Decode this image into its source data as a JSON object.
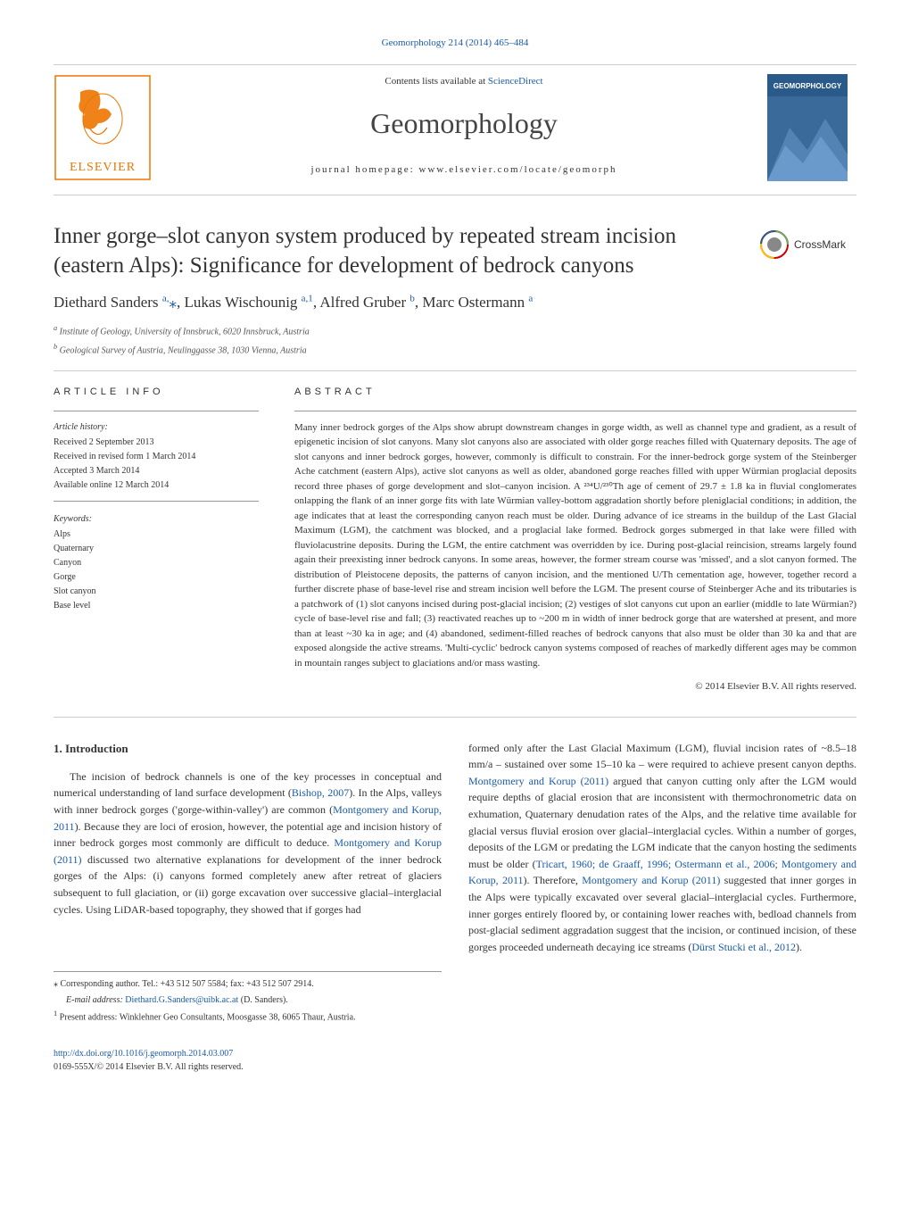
{
  "citation": "Geomorphology 214 (2014) 465–484",
  "contents_prefix": "Contents lists available at ",
  "contents_link": "ScienceDirect",
  "journal_name": "Geomorphology",
  "homepage_prefix": "journal homepage: ",
  "homepage_url": "www.elsevier.com/locate/geomorph",
  "publisher_logo_text": "ELSEVIER",
  "cover_banner_text": "GEOMORPHOLOGY",
  "crossmark_text": "CrossMark",
  "title": "Inner gorge–slot canyon system produced by repeated stream incision (eastern Alps): Significance for development of bedrock canyons",
  "authors_html": "Diethard Sanders <sup>a,</sup><span class='star'>⁎</span>, Lukas Wischounig <sup>a,1</sup>, Alfred Gruber <sup>b</sup>, Marc Ostermann <sup>a</sup>",
  "affiliations": {
    "a": "Institute of Geology, University of Innsbruck, 6020 Innsbruck, Austria",
    "b": "Geological Survey of Austria, Neulinggasse 38, 1030 Vienna, Austria"
  },
  "section_info": "article info",
  "section_abstract": "abstract",
  "history_label": "Article history:",
  "history": [
    "Received 2 September 2013",
    "Received in revised form 1 March 2014",
    "Accepted 3 March 2014",
    "Available online 12 March 2014"
  ],
  "keywords_label": "Keywords:",
  "keywords": [
    "Alps",
    "Quaternary",
    "Canyon",
    "Gorge",
    "Slot canyon",
    "Base level"
  ],
  "abstract": "Many inner bedrock gorges of the Alps show abrupt downstream changes in gorge width, as well as channel type and gradient, as a result of epigenetic incision of slot canyons. Many slot canyons also are associated with older gorge reaches filled with Quaternary deposits. The age of slot canyons and inner bedrock gorges, however, commonly is difficult to constrain. For the inner-bedrock gorge system of the Steinberger Ache catchment (eastern Alps), active slot canyons as well as older, abandoned gorge reaches filled with upper Würmian proglacial deposits record three phases of gorge development and slot–canyon incision. A ²³⁴U/²³⁰Th age of cement of 29.7 ± 1.8 ka in fluvial conglomerates onlapping the flank of an inner gorge fits with late Würmian valley-bottom aggradation shortly before pleniglacial conditions; in addition, the age indicates that at least the corresponding canyon reach must be older. During advance of ice streams in the buildup of the Last Glacial Maximum (LGM), the catchment was blocked, and a proglacial lake formed. Bedrock gorges submerged in that lake were filled with fluviolacustrine deposits. During the LGM, the entire catchment was overridden by ice. During post-glacial reincision, streams largely found again their preexisting inner bedrock canyons. In some areas, however, the former stream course was 'missed', and a slot canyon formed. The distribution of Pleistocene deposits, the patterns of canyon incision, and the mentioned U/Th cementation age, however, together record a further discrete phase of base-level rise and stream incision well before the LGM. The present course of Steinberger Ache and its tributaries is a patchwork of (1) slot canyons incised during post-glacial incision; (2) vestiges of slot canyons cut upon an earlier (middle to late Würmian?) cycle of base-level rise and fall; (3) reactivated reaches up to ~200 m in width of inner bedrock gorge that are watershed at present, and more than at least ~30 ka in age; and (4) abandoned, sediment-filled reaches of bedrock canyons that also must be older than 30 ka and that are exposed alongside the active streams. 'Multi-cyclic' bedrock canyon systems composed of reaches of markedly different ages may be common in mountain ranges subject to glaciations and/or mass wasting.",
  "copyright": "© 2014 Elsevier B.V. All rights reserved.",
  "intro_heading": "1. Introduction",
  "intro_p1_pre": "The incision of bedrock channels is one of the key processes in conceptual and numerical understanding of land surface development (",
  "intro_p1_ref1": "Bishop, 2007",
  "intro_p1_mid1": "). In the Alps, valleys with inner bedrock gorges ('gorge-within-valley') are common (",
  "intro_p1_ref2": "Montgomery and Korup, 2011",
  "intro_p1_mid2": "). Because they are loci of erosion, however, the potential age and incision history of inner bedrock gorges most commonly are difficult to deduce. ",
  "intro_p1_ref3": "Montgomery and Korup (2011)",
  "intro_p1_mid3": " discussed two alternative explanations for development of the inner bedrock gorges of the Alps: (i) canyons formed completely anew after retreat of glaciers subsequent to full glaciation, or (ii) gorge excavation over successive glacial–interglacial cycles. Using LiDAR-based topography, they showed that if gorges had",
  "intro_p2_pre": "formed only after the Last Glacial Maximum (LGM), fluvial incision rates of ~8.5–18 mm/a – sustained over some 15–10 ka – were required to achieve present canyon depths. ",
  "intro_p2_ref1": "Montgomery and Korup (2011)",
  "intro_p2_mid1": " argued that canyon cutting only after the LGM would require depths of glacial erosion that are inconsistent with thermochronometric data on exhumation, Quaternary denudation rates of the Alps, and the relative time available for glacial versus fluvial erosion over glacial–interglacial cycles. Within a number of gorges, deposits of the LGM or predating the LGM indicate that the canyon hosting the sediments must be older (",
  "intro_p2_ref2": "Tricart, 1960; de Graaff, 1996; Ostermann et al., 2006; Montgomery and Korup, 2011",
  "intro_p2_mid2": "). Therefore, ",
  "intro_p2_ref3": "Montgomery and Korup (2011)",
  "intro_p2_mid3": " suggested that inner gorges in the Alps were typically excavated over several glacial–interglacial cycles. Furthermore, inner gorges entirely floored by, or containing lower reaches with, bedload channels from post-glacial sediment aggradation suggest that the incision, or continued incision, of these gorges proceeded underneath decaying ice streams (",
  "intro_p2_ref4": "Dürst Stucki et al., 2012",
  "intro_p2_end": ").",
  "footnote_star_prefix": "⁎ Corresponding author. Tel.: +43 512 507 5584; fax: +43 512 507 2914.",
  "footnote_email_label": "E-mail address: ",
  "footnote_email": "Diethard.G.Sanders@uibk.ac.at",
  "footnote_email_tail": " (D. Sanders).",
  "footnote_1": "Present address: Winklehner Geo Consultants, Moosgasse 38, 6065 Thaur, Austria.",
  "doi_url": "http://dx.doi.org/10.1016/j.geomorph.2014.03.007",
  "doi_issn": "0169-555X/© 2014 Elsevier B.V. All rights reserved.",
  "colors": {
    "link": "#1a5ba8",
    "text": "#333333",
    "rule": "#cccccc",
    "elsevier_orange": "#ed7500",
    "cover_blue": "#2a5a8a"
  }
}
